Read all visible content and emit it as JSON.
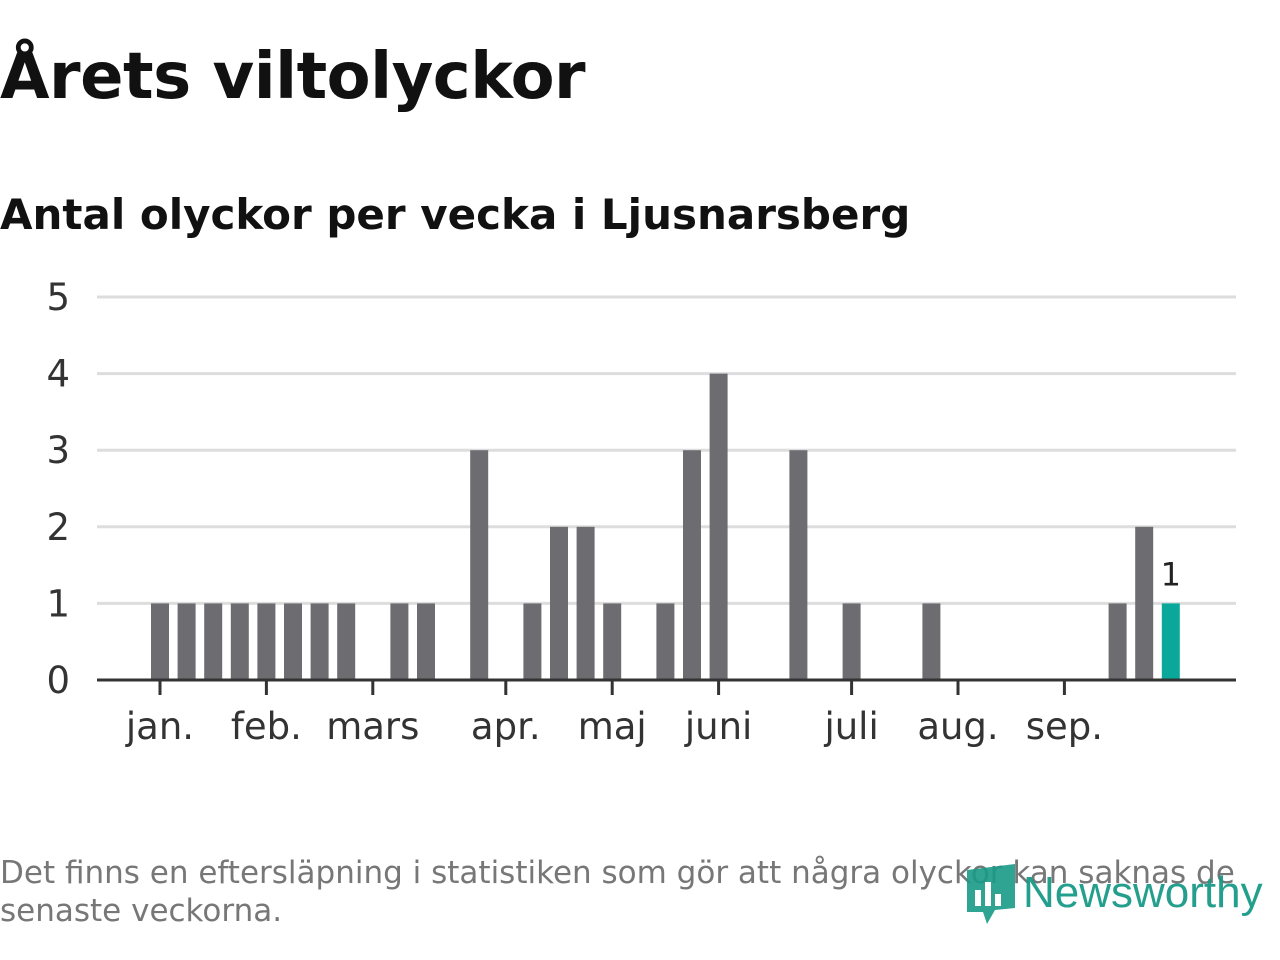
{
  "title": "Årets viltolyckor",
  "subtitle": "Antal olyckor per vecka i Ljusnarsberg",
  "footnote": "Det finns en eftersläpning i statistiken som gör att några olyckor kan saknas de senaste veckorna.",
  "logo": {
    "text": "Newsworthy",
    "icon": "bar-chart-icon"
  },
  "colors": {
    "bar": "#6d6c71",
    "highlight": "#0aa89a",
    "grid": "#dddddd",
    "axis": "#333333",
    "logo": "#1a9a87"
  },
  "chart_data": {
    "type": "bar",
    "title": "Antal olyckor per vecka i Ljusnarsberg",
    "xlabel": "",
    "ylabel": "",
    "ylim": [
      0,
      5
    ],
    "yticks": [
      "0",
      "1",
      "2",
      "3",
      "4",
      "5"
    ],
    "week_start": 1,
    "values": [
      1,
      1,
      1,
      1,
      1,
      1,
      1,
      1,
      0,
      1,
      1,
      0,
      3,
      0,
      1,
      2,
      2,
      1,
      0,
      1,
      3,
      4,
      0,
      0,
      3,
      0,
      1,
      0,
      0,
      1,
      0,
      0,
      0,
      0,
      0,
      0,
      1,
      2,
      1
    ],
    "highlight_index": 38,
    "highlight_label": "1",
    "month_labels": [
      {
        "label": "jan.",
        "week": 1
      },
      {
        "label": "feb.",
        "week": 5
      },
      {
        "label": "mars",
        "week": 9
      },
      {
        "label": "apr.",
        "week": 14
      },
      {
        "label": "maj",
        "week": 18
      },
      {
        "label": "juni",
        "week": 22
      },
      {
        "label": "juli",
        "week": 27
      },
      {
        "label": "aug.",
        "week": 31
      },
      {
        "label": "sep.",
        "week": 35
      }
    ]
  }
}
